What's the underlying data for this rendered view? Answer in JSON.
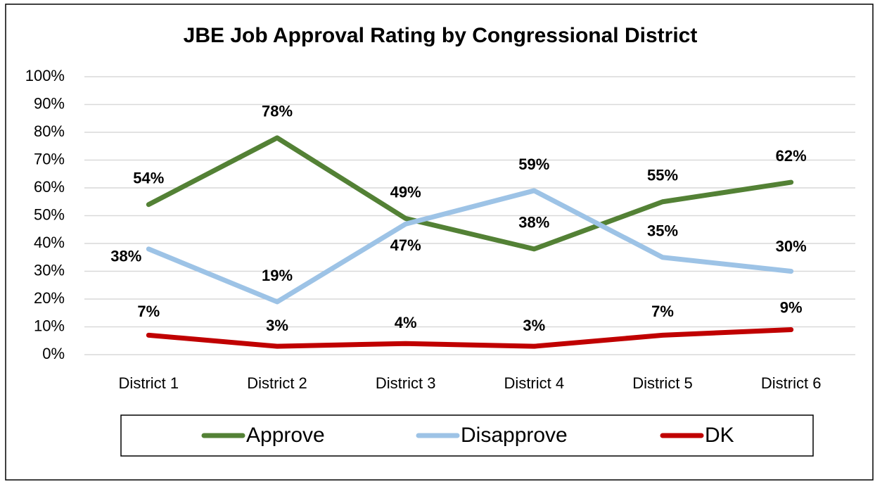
{
  "chart_data": {
    "type": "line",
    "title": "JBE Job Approval Rating by Congressional District",
    "categories": [
      "District 1",
      "District 2",
      "District 3",
      "District 4",
      "District 5",
      "District 6"
    ],
    "series": [
      {
        "name": "Approve",
        "color": "#538135",
        "values": [
          54,
          78,
          49,
          38,
          55,
          62
        ],
        "value_labels": [
          "54%",
          "78%",
          "49%",
          "38%",
          "55%",
          "62%"
        ]
      },
      {
        "name": "Disapprove",
        "color": "#9dc3e6",
        "values": [
          38,
          19,
          47,
          59,
          35,
          30
        ],
        "value_labels": [
          "38%",
          "19%",
          "47%",
          "59%",
          "35%",
          "30%"
        ]
      },
      {
        "name": "DK",
        "color": "#c00000",
        "values": [
          7,
          3,
          4,
          3,
          7,
          9
        ],
        "value_labels": [
          "7%",
          "3%",
          "4%",
          "3%",
          "7%",
          "9%"
        ]
      }
    ],
    "ylim": [
      0,
      100
    ],
    "yticks": [
      {
        "value": 0,
        "label": "0%"
      },
      {
        "value": 10,
        "label": "10%"
      },
      {
        "value": 20,
        "label": "20%"
      },
      {
        "value": 30,
        "label": "30%"
      },
      {
        "value": 40,
        "label": "40%"
      },
      {
        "value": 50,
        "label": "50%"
      },
      {
        "value": 60,
        "label": "60%"
      },
      {
        "value": 70,
        "label": "70%"
      },
      {
        "value": 80,
        "label": "80%"
      },
      {
        "value": 90,
        "label": "90%"
      },
      {
        "value": 100,
        "label": "100%"
      }
    ],
    "grid": true,
    "legend": "bottom"
  }
}
